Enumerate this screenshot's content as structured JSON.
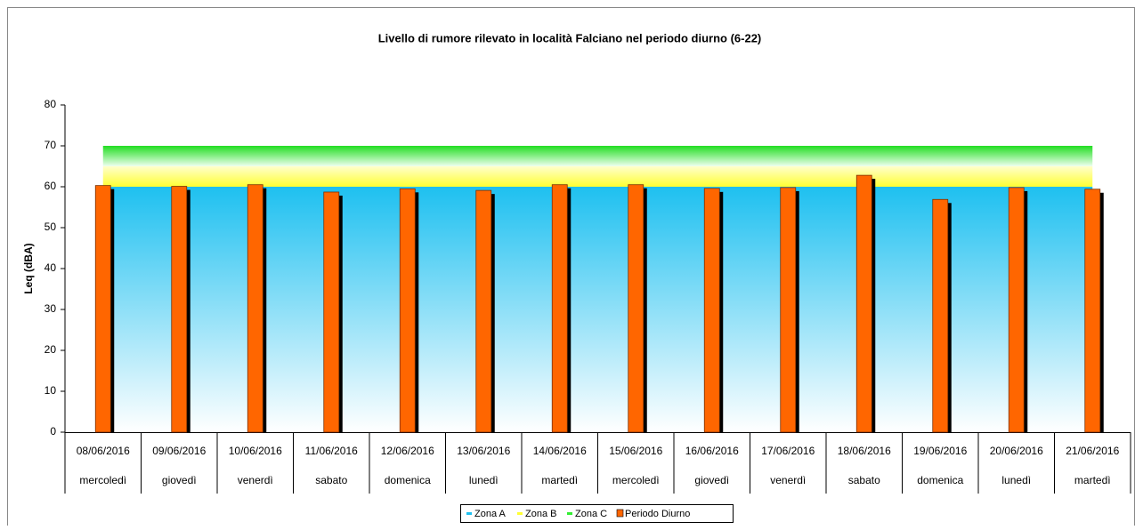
{
  "chart_data": {
    "type": "bar",
    "title": "Livello di rumore rilevato in località  Falciano nel periodo diurno (6-22)",
    "y_label": "Leq (dBA)",
    "categories": [
      "08/06/2016",
      "09/06/2016",
      "10/06/2016",
      "11/06/2016",
      "12/06/2016",
      "13/06/2016",
      "14/06/2016",
      "15/06/2016",
      "16/06/2016",
      "17/06/2016",
      "18/06/2016",
      "19/06/2016",
      "20/06/2016",
      "21/06/2016"
    ],
    "subcategories": [
      "mercoledì",
      "giovedì",
      "venerdì",
      "sabato",
      "domenica",
      "lunedì",
      "martedì",
      "mercoledì",
      "giovedì",
      "venerdì",
      "sabato",
      "domenica",
      "lunedì",
      "martedì"
    ],
    "zones": [
      {
        "name": "Zona A",
        "color": "#1ec0f0",
        "value": 60
      },
      {
        "name": "Zona B",
        "color": "#ffff33",
        "value": 5
      },
      {
        "name": "Zona C",
        "color": "#33ee33",
        "value": 5
      }
    ],
    "series": [
      {
        "name": "Periodo Diurno",
        "color": "#ff6600",
        "values": [
          60.3,
          60.1,
          60.5,
          58.7,
          59.5,
          59.1,
          60.5,
          60.5,
          59.6,
          59.8,
          62.8,
          56.9,
          59.8,
          59.4
        ]
      }
    ],
    "ylim": [
      0,
      80
    ],
    "yticks": [
      0,
      10,
      20,
      30,
      40,
      50,
      60,
      70,
      80
    ],
    "grid": false
  }
}
